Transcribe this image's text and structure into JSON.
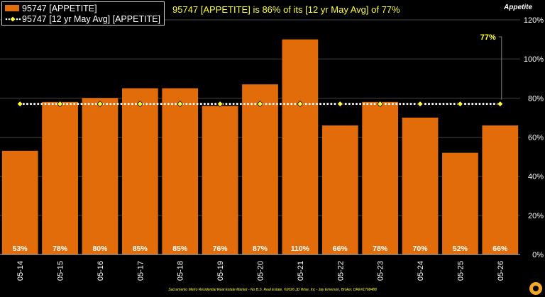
{
  "header": {
    "headline": "95747 [APPETITE] is 86% of its [12 yr May Avg] of 77%",
    "corner_title": "Appetite"
  },
  "legend": {
    "bar_label": "95747 [APPETITE]",
    "line_label": "95747 [12 yr May Avg] [APPETITE]"
  },
  "footer": {
    "credit": "Sacramento Metro Residential Real Estate Market - No B.S. Real Estate, ©2026 JD Wise, Inc - Jay Emerson, Broker, DRE#1768488"
  },
  "colors": {
    "bar": "#e36c0a",
    "avg_line": "#ffffff",
    "avg_marker": "#ffff33",
    "text": "#ffffff",
    "highlight": "#ffff33",
    "grid": "#404040"
  },
  "chart_data": {
    "type": "bar",
    "categories": [
      "05-14",
      "05-15",
      "05-16",
      "05-17",
      "05-18",
      "05-19",
      "05-20",
      "05-21",
      "05-22",
      "05-23",
      "05-24",
      "05-25",
      "05-26"
    ],
    "series": [
      {
        "name": "95747 [APPETITE]",
        "type": "bar",
        "values": [
          53,
          78,
          80,
          85,
          85,
          76,
          87,
          110,
          66,
          78,
          70,
          52,
          66
        ],
        "data_labels": [
          "53%",
          "78%",
          "80%",
          "85%",
          "85%",
          "76%",
          "87%",
          "110%",
          "66%",
          "78%",
          "70%",
          "52%",
          "66%"
        ]
      },
      {
        "name": "95747 [12 yr May Avg] [APPETITE]",
        "type": "line",
        "values": [
          77,
          77,
          77,
          77,
          77,
          77,
          77,
          77,
          77,
          77,
          77,
          77,
          77
        ]
      }
    ],
    "annotation": {
      "text": "77%",
      "category": "05-26",
      "value": 77
    },
    "y_axis": {
      "range": [
        0,
        120
      ],
      "ticks": [
        0,
        20,
        40,
        60,
        80,
        100,
        120
      ],
      "tick_labels": [
        "0%",
        "20%",
        "40%",
        "60%",
        "80%",
        "100%",
        "120%"
      ],
      "position": "right"
    },
    "title": "",
    "xlabel": "",
    "ylabel": "",
    "grid": "horizontal"
  }
}
